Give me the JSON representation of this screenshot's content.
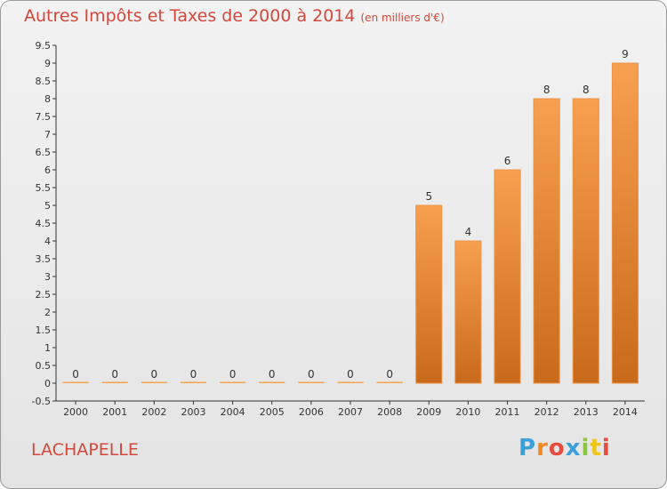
{
  "header": {
    "title": "Autres Impôts et Taxes de 2000 à 2014",
    "subtitle": "(en milliers d'€)"
  },
  "footer": {
    "commune": "LACHAPELLE",
    "brand_letters": [
      "P",
      "r",
      "o",
      "x",
      "i",
      "t",
      "i"
    ]
  },
  "chart_data": {
    "type": "bar",
    "title": "Autres Impôts et Taxes de 2000 à 2014",
    "subtitle": "(en milliers d'€)",
    "xlabel": "",
    "ylabel": "",
    "categories": [
      "2000",
      "2001",
      "2002",
      "2003",
      "2004",
      "2005",
      "2006",
      "2007",
      "2008",
      "2009",
      "2010",
      "2011",
      "2012",
      "2013",
      "2014"
    ],
    "values": [
      0,
      0,
      0,
      0,
      0,
      0,
      0,
      0,
      0,
      5,
      4,
      6,
      8,
      8,
      9
    ],
    "data_labels": [
      "0",
      "0",
      "0",
      "0",
      "0",
      "0",
      "0",
      "0",
      "0",
      "5",
      "4",
      "6",
      "8",
      "8",
      "9"
    ],
    "ylim": [
      -0.5,
      9.5
    ],
    "yticks": [
      "-0.5",
      "0",
      "0.5",
      "1",
      "1.5",
      "2",
      "2.5",
      "3",
      "3.5",
      "4",
      "4.5",
      "5",
      "5.5",
      "6",
      "6.5",
      "7",
      "7.5",
      "8",
      "8.5",
      "9",
      "9.5"
    ],
    "grid": false,
    "colors": {
      "bar_top": "#f7a04f",
      "bar_bottom": "#c96a1a",
      "text": "#d4483b",
      "axis": "#333333"
    }
  }
}
